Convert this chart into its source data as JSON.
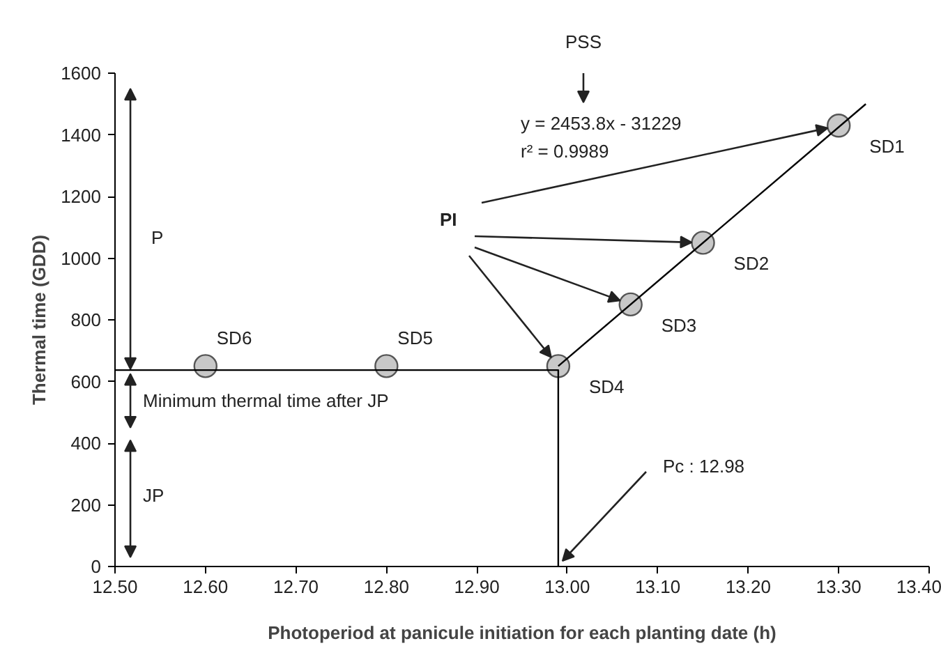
{
  "chart_data": {
    "type": "scatter",
    "xlabel": "Photoperiod at panicule initiation for each planting date (h)",
    "ylabel": "Thermal time (GDD)",
    "xlim": [
      12.5,
      13.4
    ],
    "xticks": [
      {
        "value": 12.5,
        "label": "12.50"
      },
      {
        "value": 12.6,
        "label": "12.60"
      },
      {
        "value": 12.7,
        "label": "12.70"
      },
      {
        "value": 12.8,
        "label": "12.80"
      },
      {
        "value": 12.9,
        "label": "12.90"
      },
      {
        "value": 13.0,
        "label": "13.00"
      },
      {
        "value": 13.1,
        "label": "13.10"
      },
      {
        "value": 13.2,
        "label": "13.20"
      },
      {
        "value": 13.3,
        "label": "13.30"
      },
      {
        "value": 13.4,
        "label": "13.40"
      }
    ],
    "ylim": [
      0,
      1600
    ],
    "yticks": [
      0,
      200,
      400,
      600,
      800,
      1000,
      1200,
      1400,
      1600
    ],
    "grid": false,
    "marker": "circle",
    "series": [
      {
        "type": "scatter",
        "color": "#c8c8c8",
        "x": [
          13.3,
          13.15,
          13.07,
          12.99,
          12.8,
          12.6
        ],
        "values": [
          1430,
          1050,
          850,
          650,
          650,
          650
        ]
      },
      {
        "type": "line",
        "marker": "none",
        "color": "#000000",
        "x": [
          12.5,
          12.99,
          12.99
        ],
        "values": [
          637,
          637,
          0
        ]
      },
      {
        "type": "line",
        "marker": "none",
        "color": "#000000",
        "x": [
          12.99,
          13.33
        ],
        "values": [
          650,
          1500
        ]
      }
    ],
    "annotations": [
      "PSS",
      "y = 2453.8x - 31229",
      "r² = 0.9989",
      {
        "text": "PI",
        "x": 13.15,
        "y": 1050
      },
      "P",
      "Minimum thermal time after JP",
      "JP",
      {
        "text": "Pc : 12.98",
        "x": 12.99,
        "y": 0
      },
      {
        "text": "SD1",
        "x": 13.3,
        "y": 1430
      },
      {
        "text": "SD2",
        "x": 13.15,
        "y": 1050
      },
      {
        "text": "SD3",
        "x": 13.07,
        "y": 850
      },
      {
        "text": "SD4",
        "x": 12.99,
        "y": 650
      },
      {
        "text": "SD5",
        "x": 12.8,
        "y": 650
      },
      {
        "text": "SD6",
        "x": 12.6,
        "y": 650
      }
    ]
  }
}
